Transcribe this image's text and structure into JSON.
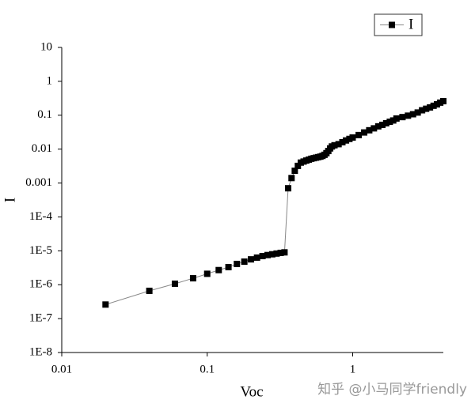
{
  "chart_data": {
    "type": "line",
    "x_label": "Voc",
    "y_label": "I",
    "x": [
      0.02,
      0.04,
      0.06,
      0.08,
      0.1,
      0.12,
      0.14,
      0.16,
      0.18,
      0.2,
      0.22,
      0.24,
      0.26,
      0.28,
      0.3,
      0.32,
      0.34,
      0.36,
      0.38,
      0.4,
      0.42,
      0.44,
      0.46,
      0.48,
      0.5,
      0.52,
      0.54,
      0.56,
      0.58,
      0.6,
      0.62,
      0.64,
      0.66,
      0.68,
      0.7,
      0.72,
      0.75,
      0.8,
      0.85,
      0.9,
      0.95,
      1.0,
      1.1,
      1.2,
      1.3,
      1.4,
      1.5,
      1.6,
      1.7,
      1.8,
      1.9,
      2.0,
      2.2,
      2.4,
      2.6,
      2.8,
      3.0,
      3.2,
      3.4,
      3.6,
      3.8,
      4.0,
      4.2
    ],
    "series": [
      {
        "name": "I",
        "color": "#000000",
        "values": [
          2.6e-07,
          6.6e-07,
          1.07e-06,
          1.55e-06,
          2.1e-06,
          2.7e-06,
          3.3e-06,
          4.1e-06,
          4.8e-06,
          5.6e-06,
          6.3e-06,
          7e-06,
          7.5e-06,
          7.9e-06,
          8.3e-06,
          8.7e-06,
          9e-06,
          0.0007,
          0.0014,
          0.0023,
          0.0032,
          0.004,
          0.0043,
          0.0046,
          0.0049,
          0.0052,
          0.0054,
          0.0056,
          0.0058,
          0.006,
          0.0063,
          0.0068,
          0.0076,
          0.0088,
          0.0105,
          0.012,
          0.013,
          0.014,
          0.016,
          0.018,
          0.02,
          0.022,
          0.026,
          0.031,
          0.036,
          0.041,
          0.047,
          0.052,
          0.058,
          0.064,
          0.07,
          0.08,
          0.088,
          0.097,
          0.107,
          0.12,
          0.14,
          0.155,
          0.17,
          0.19,
          0.21,
          0.235,
          0.26
        ]
      }
    ],
    "x_log": true,
    "y_log": true,
    "xlim": [
      0.01,
      4.2
    ],
    "ylim": [
      1e-08,
      10
    ],
    "xticks": [
      0.01,
      0.1,
      1
    ],
    "yticks": [
      10,
      1,
      0.1,
      0.01,
      0.001,
      {
        "value": 0.0001,
        "label": "1E-4"
      },
      {
        "value": 1e-05,
        "label": "1E-5"
      },
      {
        "value": 1e-06,
        "label": "1E-6"
      },
      {
        "value": 1e-07,
        "label": "1E-7"
      },
      {
        "value": 1e-08,
        "label": "1E-8"
      }
    ],
    "line_color": "#888888",
    "legend_position": "top-right",
    "watermark": "知乎 @小马同学friendly"
  }
}
